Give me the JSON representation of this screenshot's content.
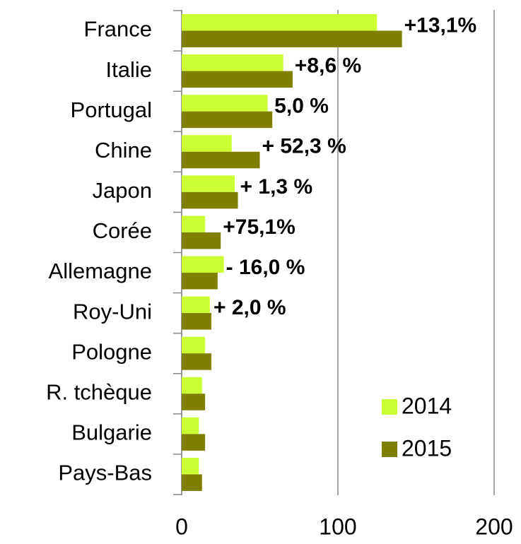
{
  "chart_data": {
    "type": "bar",
    "orientation": "horizontal",
    "categories": [
      "France",
      "Italie",
      "Portugal",
      "Chine",
      "Japon",
      "Corée",
      "Allemagne",
      "Roy-Uni",
      "Pologne",
      "R. tchèque",
      "Bulgarie",
      "Pays-Bas"
    ],
    "series": [
      {
        "name": "2014",
        "color": "#ccff33",
        "values": [
          125,
          65,
          55,
          32,
          34,
          15,
          27,
          18,
          15,
          13,
          11,
          11
        ]
      },
      {
        "name": "2015",
        "color": "#808000",
        "values": [
          141,
          71,
          58,
          50,
          36,
          25,
          23,
          19,
          19,
          15,
          15,
          13
        ]
      }
    ],
    "annotations": [
      {
        "text": "+13,1%",
        "color": "#ff0000"
      },
      {
        "text": "+8,6 %",
        "color": "#ff0000"
      },
      {
        "text": "5,0 %",
        "color": "#000000"
      },
      {
        "text": "+ 52,3 %",
        "color": "#33ee33"
      },
      {
        "text": "+ 1,3 %",
        "color": "#000000"
      },
      {
        "text": "+75,1%",
        "color": "#33ee33"
      },
      {
        "text": "- 16,0 %",
        "color": "#000000"
      },
      {
        "text": "+ 2,0 %",
        "color": "#000000"
      }
    ],
    "xlim": [
      0,
      200
    ],
    "xticks": [
      0,
      100,
      200
    ],
    "grid": true,
    "legend": "lower right"
  }
}
